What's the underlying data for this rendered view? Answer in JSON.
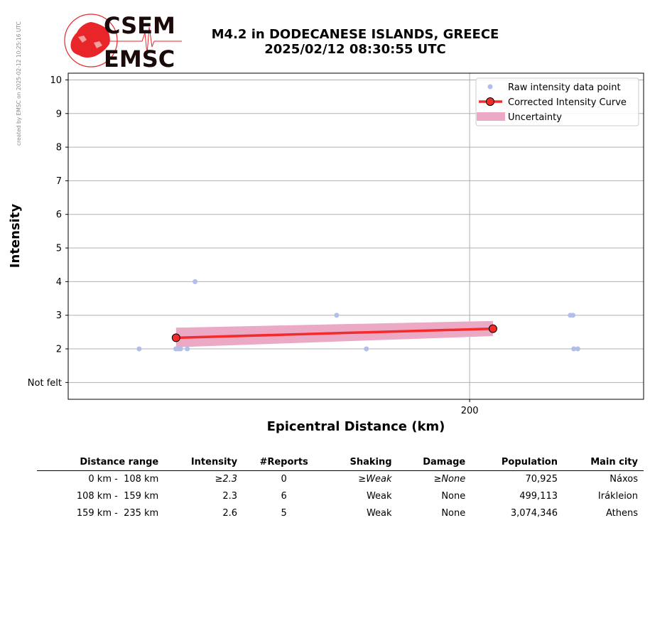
{
  "credit": "created by EMSC on 2025-02-12 10:25:16 UTC",
  "logo": {
    "line1": "CSEM",
    "line2": "EMSC",
    "color_red": "#e8262a",
    "color_dark": "#1a0a0a"
  },
  "header": {
    "title_line1": "M4.2 in DODECANESE ISLANDS, GREECE",
    "title_line2": "2025/02/12 08:30:55 UTC"
  },
  "chart_data": {
    "type": "scatter",
    "xlabel": "Epicentral Distance (km)",
    "ylabel": "Intensity",
    "xlim": [
      50,
      265
    ],
    "ylim": [
      0.5,
      10.2
    ],
    "x_ticks": [
      200
    ],
    "x_tick_labels": [
      "200"
    ],
    "y_ticks": [
      1,
      2,
      3,
      4,
      5,
      6,
      7,
      8,
      9,
      10
    ],
    "y_tick_labels": [
      "Not felt",
      "2",
      "3",
      "4",
      "5",
      "6",
      "7",
      "8",
      "9",
      "10"
    ],
    "grid": true,
    "legend_position": "top-right",
    "legend": [
      {
        "label": "Raw intensity data point",
        "kind": "dot",
        "color": "#b0bfea"
      },
      {
        "label": "Corrected Intensity Curve",
        "kind": "line-marker",
        "color": "#f52a2a"
      },
      {
        "label": "Uncertainty",
        "kind": "band",
        "color": "#eba9c5"
      }
    ],
    "raw_points": [
      {
        "x": 76.5,
        "y": 2
      },
      {
        "x": 90.2,
        "y": 2
      },
      {
        "x": 91.2,
        "y": 2
      },
      {
        "x": 92.0,
        "y": 2
      },
      {
        "x": 94.5,
        "y": 2
      },
      {
        "x": 97.4,
        "y": 4
      },
      {
        "x": 150.3,
        "y": 3
      },
      {
        "x": 161.4,
        "y": 2
      },
      {
        "x": 237.6,
        "y": 3
      },
      {
        "x": 238.6,
        "y": 3
      },
      {
        "x": 238.9,
        "y": 2
      },
      {
        "x": 240.4,
        "y": 2
      }
    ],
    "curve": [
      {
        "x": 90.3,
        "y": 2.33
      },
      {
        "x": 208.7,
        "y": 2.6
      }
    ],
    "uncertainty": {
      "x": [
        90.3,
        208.7
      ],
      "lower": [
        2.05,
        2.38
      ],
      "upper": [
        2.63,
        2.83
      ]
    }
  },
  "table": {
    "headers": [
      "Distance range",
      "Intensity",
      "#Reports",
      "Shaking",
      "Damage",
      "Population",
      "Main city"
    ],
    "rows": [
      {
        "range": "0 km -  108 km",
        "intensity": "≥2.3",
        "reports": "0",
        "shaking": "≥Weak",
        "damage": "≥None",
        "population": "70,925",
        "city": "Náxos"
      },
      {
        "range": "108 km -  159 km",
        "intensity": "2.3",
        "reports": "6",
        "shaking": "Weak",
        "damage": "None",
        "population": "499,113",
        "city": "Irákleion"
      },
      {
        "range": "159 km -  235 km",
        "intensity": "2.6",
        "reports": "5",
        "shaking": "Weak",
        "damage": "None",
        "population": "3,074,346",
        "city": "Athens"
      }
    ]
  }
}
